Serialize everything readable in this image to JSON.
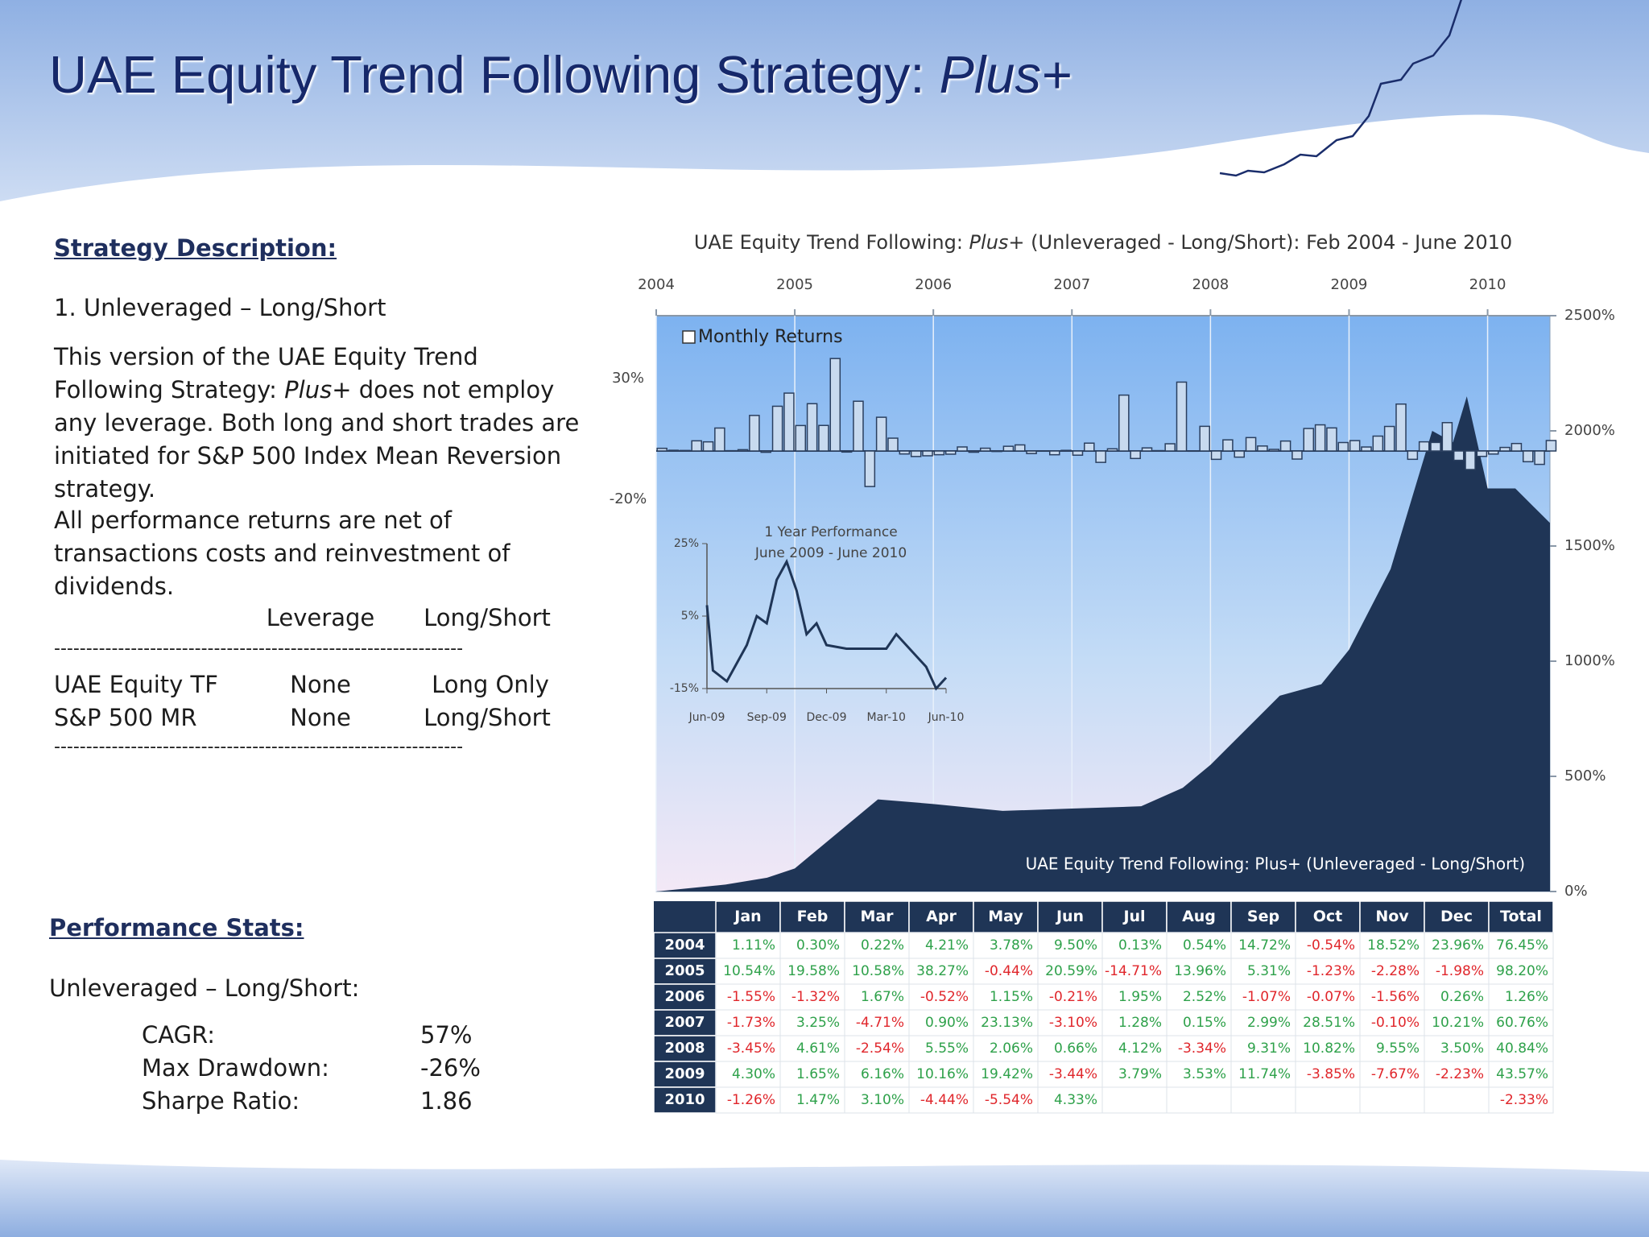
{
  "header": {
    "title": "UAE Equity Trend Following Strategy: ",
    "title_italic": "Plus+"
  },
  "description": {
    "heading": "Strategy Description:",
    "item": "1.   Unleveraged – Long/Short",
    "p1_a": "This version of the UAE Equity Trend Following Strategy: ",
    "p1_italic": "Plus+",
    "p1_b": " does not employ any leverage. Both long and short trades are initiated for S&P 500 Index Mean Reversion strategy.",
    "p2": "All performance returns are net of transactions costs and reinvestment of dividends."
  },
  "leverage_table": {
    "header": [
      "Leverage",
      "Long/Short"
    ],
    "divider": "----------------------------------------------------------------",
    "rows": [
      [
        "UAE Equity TF",
        "None",
        "Long Only"
      ],
      [
        "S&P 500 MR",
        "None",
        "Long/Short"
      ]
    ]
  },
  "stats": {
    "heading": "Performance Stats:",
    "subheading": "Unleveraged – Long/Short:",
    "rows": [
      [
        "CAGR:",
        "57%"
      ],
      [
        "Max Drawdown:",
        "-26%"
      ],
      [
        "Sharpe Ratio:",
        "1.86"
      ]
    ]
  },
  "chart_data": {
    "type": "bar_area",
    "title": "UAE Equity Trend Following: ",
    "title_italic": "Plus+",
    "title_rest": " (Unleveraged - Long/Short):  Feb 2004  -  June 2010",
    "xlim": [
      2004,
      2010.45
    ],
    "xticks": [
      2004,
      2005,
      2006,
      2007,
      2008,
      2009,
      2010
    ],
    "ylim": [
      -20,
      30
    ],
    "yticks": [
      {
        "value": 30,
        "label": "30%"
      },
      {
        "value": -20,
        "label": "-20%"
      }
    ],
    "y2lim": [
      0,
      2500
    ],
    "y2ticks": [
      {
        "value": 0,
        "label": "0%"
      },
      {
        "value": 500,
        "label": "500%"
      },
      {
        "value": 1000,
        "label": "1000%"
      },
      {
        "value": 1500,
        "label": "1500%"
      },
      {
        "value": 2000,
        "label": "2000%"
      },
      {
        "value": 2500,
        "label": "2500%"
      }
    ],
    "grid": true,
    "legend": "upper left",
    "series": [
      {
        "name": "Monthly Returns",
        "color": "#c8daef",
        "values": [
          1.11,
          0.3,
          0.22,
          4.21,
          3.78,
          9.5,
          0.13,
          0.54,
          14.72,
          -0.54,
          18.52,
          23.96,
          10.54,
          19.58,
          10.58,
          38.27,
          -0.44,
          20.59,
          -14.71,
          13.96,
          5.31,
          -1.23,
          -2.28,
          -1.98,
          -1.55,
          -1.32,
          1.67,
          -0.52,
          1.15,
          -0.21,
          1.95,
          2.52,
          -1.07,
          -0.07,
          -1.56,
          0.26,
          -1.73,
          3.25,
          -4.71,
          0.9,
          23.13,
          -3.1,
          1.28,
          0.15,
          2.99,
          28.51,
          -0.1,
          10.21,
          -3.45,
          4.61,
          -2.54,
          5.55,
          2.06,
          0.66,
          4.12,
          -3.34,
          9.31,
          10.82,
          9.55,
          3.5,
          4.3,
          1.65,
          6.16,
          10.16,
          19.42,
          -3.44,
          3.79,
          3.53,
          11.74,
          -3.85,
          -7.67,
          -2.23,
          -1.26,
          1.47,
          3.1,
          -4.44,
          -5.54,
          4.33
        ]
      },
      {
        "name": "UAE Equity Trend Following: Plus+ (Unleveraged - Long/Short)",
        "color": "#1f3556",
        "axis": "y2",
        "x": [
          2004.0,
          2004.5,
          2004.8,
          2005.0,
          2005.3,
          2005.6,
          2006.0,
          2006.5,
          2007.0,
          2007.5,
          2007.8,
          2008.0,
          2008.5,
          2008.8,
          2009.0,
          2009.3,
          2009.45,
          2009.6,
          2009.75,
          2009.85,
          2010.0,
          2010.2,
          2010.45
        ],
        "values": [
          0,
          30,
          60,
          100,
          250,
          400,
          380,
          350,
          360,
          370,
          450,
          550,
          850,
          900,
          1050,
          1400,
          1700,
          2000,
          1950,
          2150,
          1750,
          1750,
          1600
        ]
      }
    ],
    "inset": {
      "title": "1 Year Performance",
      "subtitle": "June 2009 - June 2010",
      "xlim": [
        0,
        12
      ],
      "xticks": [
        {
          "value": 0,
          "label": "Jun-09"
        },
        {
          "value": 3,
          "label": "Sep-09"
        },
        {
          "value": 6,
          "label": "Dec-09"
        },
        {
          "value": 9,
          "label": "Mar-10"
        },
        {
          "value": 12,
          "label": "Jun-10"
        }
      ],
      "ylim": [
        -15,
        25
      ],
      "yticks": [
        {
          "value": 25,
          "label": "25%"
        },
        {
          "value": 5,
          "label": "5%"
        },
        {
          "value": -15,
          "label": "-15%"
        }
      ],
      "series": [
        {
          "color": "#1f3556",
          "x": [
            0,
            0.3,
            1,
            1.5,
            2,
            2.5,
            3,
            3.5,
            4,
            4.5,
            5,
            5.5,
            6,
            7,
            8,
            9,
            9.5,
            10,
            11,
            11.5,
            12
          ],
          "values": [
            8,
            -10,
            -13,
            -8,
            -3,
            5,
            3,
            15,
            20,
            12,
            0,
            3,
            -3,
            -4,
            -4,
            -4,
            0,
            -3,
            -9,
            -15,
            -12
          ]
        }
      ]
    }
  },
  "returns_table": {
    "header": [
      "Jan",
      "Feb",
      "Mar",
      "Apr",
      "May",
      "Jun",
      "Jul",
      "Aug",
      "Sep",
      "Oct",
      "Nov",
      "Dec",
      "Total"
    ],
    "rows": [
      {
        "year": "2004",
        "cells": [
          "1.11%",
          "0.30%",
          "0.22%",
          "4.21%",
          "3.78%",
          "9.50%",
          "0.13%",
          "0.54%",
          "14.72%",
          "-0.54%",
          "18.52%",
          "23.96%",
          "76.45%"
        ]
      },
      {
        "year": "2005",
        "cells": [
          "10.54%",
          "19.58%",
          "10.58%",
          "38.27%",
          "-0.44%",
          "20.59%",
          "-14.71%",
          "13.96%",
          "5.31%",
          "-1.23%",
          "-2.28%",
          "-1.98%",
          "98.20%"
        ]
      },
      {
        "year": "2006",
        "cells": [
          "-1.55%",
          "-1.32%",
          "1.67%",
          "-0.52%",
          "1.15%",
          "-0.21%",
          "1.95%",
          "2.52%",
          "-1.07%",
          "-0.07%",
          "-1.56%",
          "0.26%",
          "1.26%"
        ]
      },
      {
        "year": "2007",
        "cells": [
          "-1.73%",
          "3.25%",
          "-4.71%",
          "0.90%",
          "23.13%",
          "-3.10%",
          "1.28%",
          "0.15%",
          "2.99%",
          "28.51%",
          "-0.10%",
          "10.21%",
          "60.76%"
        ]
      },
      {
        "year": "2008",
        "cells": [
          "-3.45%",
          "4.61%",
          "-2.54%",
          "5.55%",
          "2.06%",
          "0.66%",
          "4.12%",
          "-3.34%",
          "9.31%",
          "10.82%",
          "9.55%",
          "3.50%",
          "40.84%"
        ]
      },
      {
        "year": "2009",
        "cells": [
          "4.30%",
          "1.65%",
          "6.16%",
          "10.16%",
          "19.42%",
          "-3.44%",
          "3.79%",
          "3.53%",
          "11.74%",
          "-3.85%",
          "-7.67%",
          "-2.23%",
          "43.57%"
        ]
      },
      {
        "year": "2010",
        "cells": [
          "-1.26%",
          "1.47%",
          "3.10%",
          "-4.44%",
          "-5.54%",
          "4.33%",
          null,
          null,
          null,
          null,
          null,
          null,
          "-2.33%"
        ]
      }
    ]
  }
}
